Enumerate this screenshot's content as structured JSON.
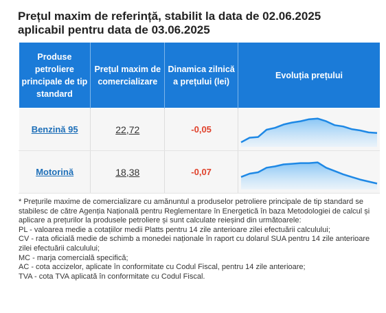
{
  "header": {
    "title_line1": "Prețul maxim de referință, stabilit la data de 02.06.2025",
    "title_line2": "aplicabil pentru data de 03.06.2025"
  },
  "table": {
    "headers": [
      "Produse petroliere principale de tip standard",
      "Prețul maxim de comercializare",
      "Dinamica zilnică a prețului (lei)",
      "Evoluția prețului"
    ],
    "rows": [
      {
        "product": "Benzină 95",
        "price": "22,72",
        "change": "-0,05",
        "history": {
          "ylim": [
            22.3,
            23.3
          ],
          "values": [
            22.44,
            22.58,
            22.6,
            22.82,
            22.88,
            22.98,
            23.04,
            23.08,
            23.14,
            23.16,
            23.08,
            22.96,
            22.92,
            22.84,
            22.8,
            22.74,
            22.72
          ]
        }
      },
      {
        "product": "Motorină",
        "price": "18,38",
        "change": "-0,07",
        "history": {
          "ylim": [
            18.2,
            19.2
          ],
          "values": [
            18.58,
            18.68,
            18.72,
            18.86,
            18.9,
            18.96,
            18.98,
            19.0,
            19.0,
            19.02,
            18.86,
            18.76,
            18.66,
            18.58,
            18.5,
            18.44,
            18.38
          ]
        }
      }
    ]
  },
  "footnotes": [
    "* Prețurile maxime de comercializare cu amănuntul a produselor petroliere principale de tip standard se stabilesc de către Agenția Națională pentru Reglementare în Energetică în baza Metodologiei de calcul și aplicare a prețurilor la produsele petroliere și sunt calculate reieșind din următoarele:",
    "PL - valoarea medie a cotațiilor medii Platts pentru 14 zile anterioare zilei efectuării calculului;",
    "CV - rata oficială medie de schimb a monedei naționale în raport cu dolarul SUA pentru 14 zile anterioare zilei efectuării calculului;",
    "MC - marja comercială specifică;",
    "AC - cota accizelor, aplicate în conformitate cu Codul Fiscal, pentru 14 zile anterioare;",
    "TVA - cota TVA aplicată în conformitate cu Codul Fiscal."
  ]
}
